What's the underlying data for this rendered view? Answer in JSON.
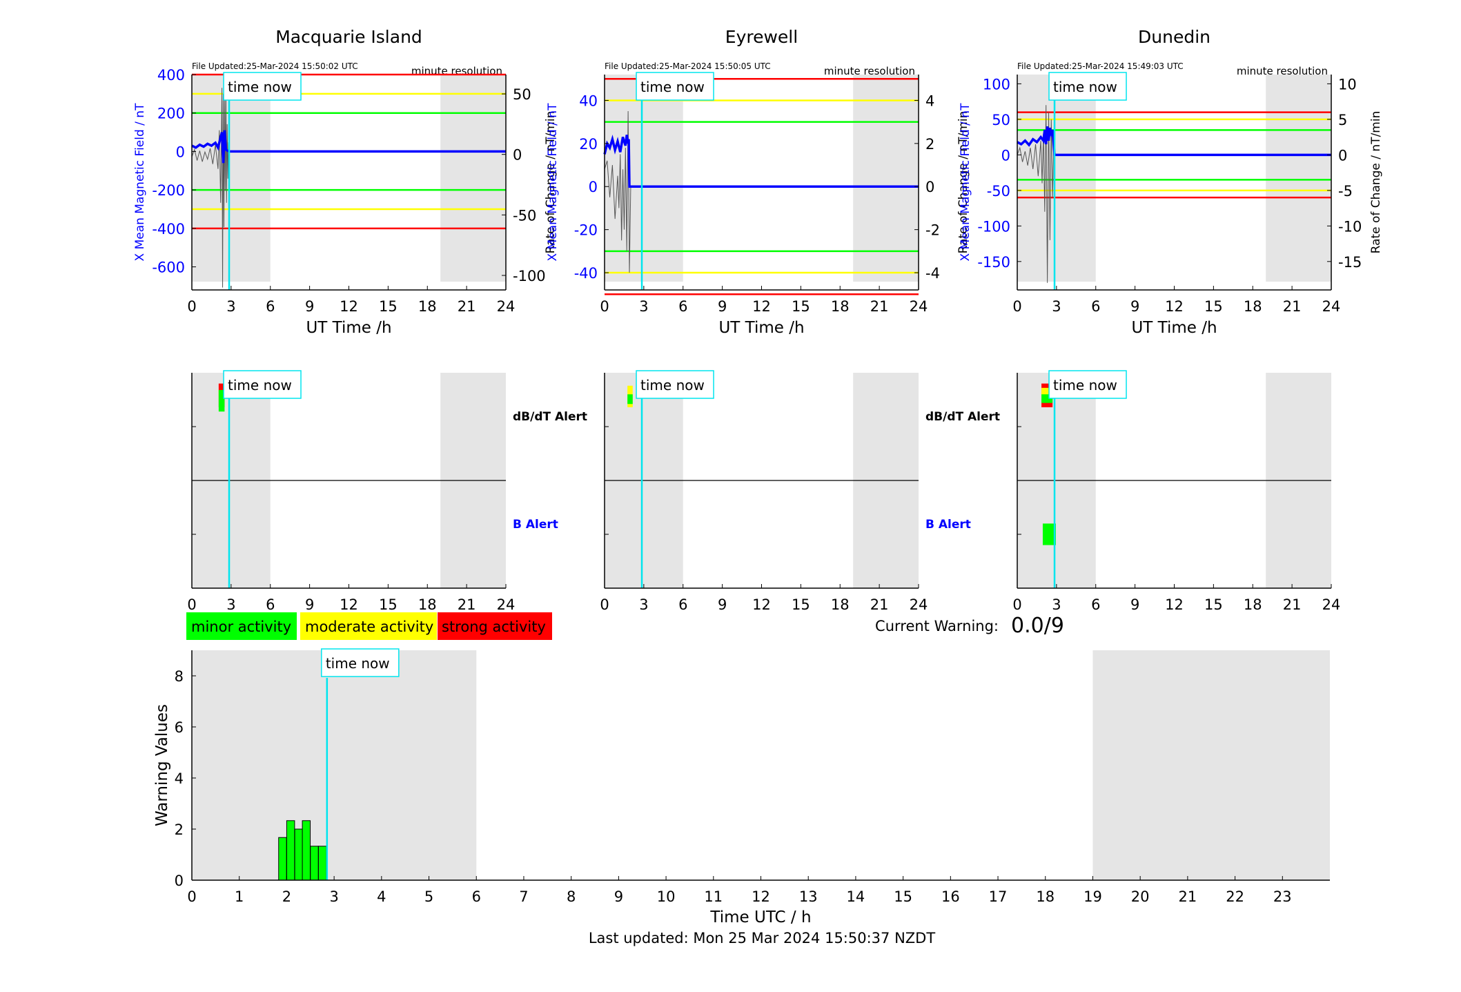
{
  "colors": {
    "minor": "#00ff00",
    "moderate": "#ffff00",
    "strong": "#ff0000",
    "field": "#0000ff",
    "now": "#00e5ee",
    "shade": "#e5e5e5"
  },
  "labels": {
    "time_now": "time now",
    "minute_resolution": "minute resolution",
    "dbdt_alert": "dB/dT Alert",
    "b_alert": "B Alert",
    "ut_xlabel": "UT Time /h",
    "left_ylabel": "X Mean Magnetic Field / nT",
    "right_ylabel": "Rate of Change / nT/min"
  },
  "legend": {
    "minor": "minor activity",
    "moderate": "moderate activity",
    "strong": "strong activity"
  },
  "current_warning": {
    "label": "Current Warning:",
    "value": "0.0/9"
  },
  "last_updated": "Last updated: Mon 25 Mar 2024 15:50:37 NZDT",
  "chart_data": [
    {
      "type": "line",
      "title": "Macquarie Island",
      "file_updated": "File Updated:25-Mar-2024 15:50:02 UTC",
      "xlim": [
        0,
        24
      ],
      "xticks": [
        0,
        3,
        6,
        9,
        12,
        15,
        18,
        21,
        24
      ],
      "ylim": [
        -720,
        400
      ],
      "yticks": [
        -600,
        -400,
        -200,
        0,
        200,
        400
      ],
      "y2lim": [
        -112,
        66
      ],
      "y2ticks": [
        -100,
        -50,
        0,
        50
      ],
      "thresholds": {
        "strong": 400,
        "moderate": 300,
        "minor": 200
      },
      "time_now": 2.85,
      "shaded": [
        [
          0,
          6
        ],
        [
          19,
          24
        ]
      ],
      "field_series": {
        "x": [
          0,
          0.3,
          0.6,
          0.9,
          1.2,
          1.5,
          1.8,
          2.0,
          2.15,
          2.3,
          2.4,
          2.5,
          2.6,
          2.7,
          2.85,
          24
        ],
        "y": [
          30,
          20,
          35,
          25,
          40,
          30,
          45,
          20,
          60,
          100,
          -60,
          110,
          10,
          5,
          0,
          0
        ]
      },
      "rate_series": {
        "x": [
          0,
          0.2,
          0.4,
          0.6,
          0.8,
          1.0,
          1.2,
          1.4,
          1.6,
          1.8,
          2.0,
          2.1,
          2.2,
          2.3,
          2.35,
          2.4,
          2.45,
          2.5,
          2.55,
          2.6,
          2.65,
          2.7,
          2.75,
          2.8
        ],
        "y": [
          -2,
          4,
          -5,
          3,
          -6,
          2,
          -4,
          5,
          -8,
          8,
          -12,
          20,
          -40,
          55,
          -110,
          50,
          -60,
          45,
          -30,
          60,
          -40,
          25,
          -20,
          10
        ]
      },
      "dbdt_alert": [
        {
          "x0": 2.05,
          "x1": 2.5,
          "level": "strong",
          "y0": 0.68,
          "y1": 0.9
        },
        {
          "x0": 2.05,
          "x1": 2.5,
          "level": "moderate",
          "y0": 0.78,
          "y1": 0.84
        },
        {
          "x0": 2.05,
          "x1": 2.5,
          "level": "minor",
          "y0": 0.84,
          "y1": 0.64
        }
      ],
      "b_alert": []
    },
    {
      "type": "line",
      "title": "Eyrewell",
      "file_updated": "File Updated:25-Mar-2024 15:50:05 UTC",
      "xlim": [
        0,
        24
      ],
      "xticks": [
        0,
        3,
        6,
        9,
        12,
        15,
        18,
        21,
        24
      ],
      "ylim": [
        -48,
        52
      ],
      "yticks": [
        -40,
        -20,
        0,
        20,
        40
      ],
      "y2lim": [
        -4.8,
        5.2
      ],
      "y2ticks": [
        -4,
        -2,
        0,
        2,
        4
      ],
      "thresholds": {
        "strong": 50,
        "moderate": 40,
        "minor": 30
      },
      "time_now": 2.85,
      "shaded": [
        [
          0,
          6
        ],
        [
          19,
          24
        ]
      ],
      "field_series": {
        "x": [
          0,
          0.2,
          0.4,
          0.6,
          0.8,
          1.0,
          1.2,
          1.4,
          1.6,
          1.7,
          1.8,
          1.85,
          1.9,
          2.0,
          24
        ],
        "y": [
          15,
          20,
          18,
          22,
          17,
          21,
          16,
          23,
          19,
          24,
          20,
          22,
          0,
          0,
          0
        ]
      },
      "rate_series": {
        "x": [
          0,
          0.2,
          0.4,
          0.6,
          0.8,
          1.0,
          1.1,
          1.2,
          1.3,
          1.4,
          1.5,
          1.6,
          1.7,
          1.8,
          1.9,
          2.0
        ],
        "y": [
          0.8,
          1.2,
          -0.5,
          1.0,
          -1.5,
          0.5,
          -1.0,
          1.5,
          -2.5,
          0.8,
          -2.0,
          1.8,
          -3.0,
          3.5,
          -4.0,
          0.0
        ]
      },
      "dbdt_alert": [
        {
          "x0": 1.75,
          "x1": 2.15,
          "level": "moderate",
          "y0": 0.68,
          "y1": 0.88
        },
        {
          "x0": 1.75,
          "x1": 2.15,
          "level": "minor",
          "y0": 0.71,
          "y1": 0.8
        }
      ],
      "b_alert": []
    },
    {
      "type": "line",
      "title": "Dunedin",
      "file_updated": "File Updated:25-Mar-2024 15:49:03 UTC",
      "xlim": [
        0,
        24
      ],
      "xticks": [
        0,
        3,
        6,
        9,
        12,
        15,
        18,
        21,
        24
      ],
      "ylim": [
        -190,
        113
      ],
      "yticks": [
        -150,
        -100,
        -50,
        0,
        50,
        100
      ],
      "y2lim": [
        -19,
        11.3
      ],
      "y2ticks": [
        -15,
        -10,
        -5,
        0,
        5,
        10
      ],
      "thresholds": {
        "strong": 60,
        "moderate": 50,
        "minor": 35
      },
      "time_now": 2.85,
      "shaded": [
        [
          0,
          6
        ],
        [
          19,
          24
        ]
      ],
      "field_series": {
        "x": [
          0,
          0.3,
          0.6,
          0.9,
          1.2,
          1.5,
          1.8,
          2.0,
          2.1,
          2.2,
          2.3,
          2.4,
          2.5,
          2.6,
          2.7,
          2.85,
          24
        ],
        "y": [
          18,
          15,
          20,
          14,
          22,
          18,
          25,
          20,
          35,
          15,
          40,
          20,
          38,
          30,
          35,
          0,
          0
        ]
      },
      "rate_series": {
        "x": [
          0,
          0.2,
          0.4,
          0.6,
          0.8,
          1.0,
          1.2,
          1.4,
          1.6,
          1.8,
          1.9,
          2.0,
          2.1,
          2.2,
          2.3,
          2.4,
          2.5,
          2.6,
          2.7,
          2.8
        ],
        "y": [
          0,
          1,
          -1,
          0.5,
          -1.5,
          1,
          -2,
          1.5,
          -3,
          2,
          -4,
          3,
          -8,
          7,
          -18,
          6,
          -12,
          5,
          -6,
          2
        ]
      },
      "dbdt_alert": [
        {
          "x0": 1.85,
          "x1": 2.7,
          "level": "strong",
          "y0": 0.68,
          "y1": 0.9
        },
        {
          "x0": 1.85,
          "x1": 2.7,
          "level": "moderate",
          "y0": 0.76,
          "y1": 0.86
        },
        {
          "x0": 1.85,
          "x1": 2.7,
          "level": "minor",
          "y0": 0.8,
          "y1": 0.72
        }
      ],
      "b_alert": [
        {
          "x0": 1.95,
          "x1": 2.95,
          "level": "minor",
          "y0": 0.4,
          "y1": 0.6
        }
      ]
    },
    {
      "type": "bar",
      "xlabel": "Time UTC / h",
      "ylabel": "Warning Values",
      "xlim": [
        0,
        24
      ],
      "xticks": [
        0,
        1,
        2,
        3,
        4,
        5,
        6,
        7,
        8,
        9,
        10,
        11,
        12,
        13,
        14,
        15,
        16,
        17,
        18,
        19,
        20,
        21,
        22,
        23
      ],
      "ylim": [
        0,
        9
      ],
      "yticks": [
        0,
        2,
        4,
        6,
        8
      ],
      "time_now": 2.85,
      "shaded": [
        [
          0,
          6
        ],
        [
          19,
          24
        ]
      ],
      "bar_width": 0.1667,
      "x": [
        1.83,
        2.0,
        2.17,
        2.33,
        2.5,
        2.67
      ],
      "values": [
        1.67,
        2.33,
        2.0,
        2.33,
        1.33,
        1.33
      ]
    }
  ]
}
